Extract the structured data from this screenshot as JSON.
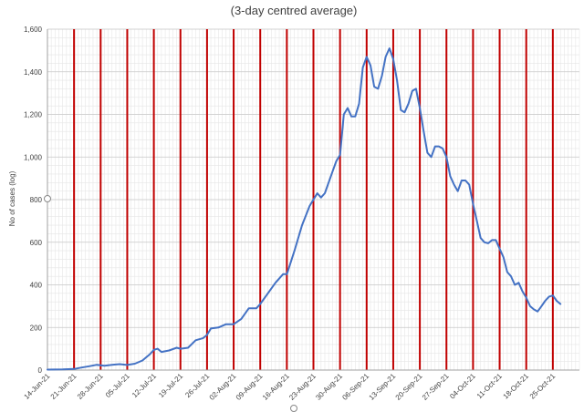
{
  "chart_data": {
    "type": "line",
    "title": "(3-day centred average)",
    "ylabel": "No of cases (log)",
    "xlabel": "",
    "ylim": [
      0,
      1600
    ],
    "yticks": [
      0,
      200,
      400,
      600,
      800,
      1000,
      1200,
      1400,
      1600
    ],
    "ytick_labels": [
      "0",
      "200",
      "400",
      "600",
      "800",
      "1,000",
      "1,200",
      "1,400",
      "1,600"
    ],
    "x_start": "2021-06-14",
    "x_end": "2021-11-01",
    "xtick_labels": [
      "14-Jun-21",
      "21-Jun-21",
      "28-Jun-21",
      "05-Jul-21",
      "12-Jul-21",
      "19-Jul-21",
      "26-Jul-21",
      "02-Aug-21",
      "09-Aug-21",
      "16-Aug-21",
      "23-Aug-21",
      "30-Aug-21",
      "06-Sep-21",
      "13-Sep-21",
      "20-Sep-21",
      "27-Sep-21",
      "04-Oct-21",
      "11-Oct-21",
      "18-Oct-21",
      "25-Oct-21"
    ],
    "grid": true,
    "weekly_marker_color": "#c00000",
    "line_color": "#4472c4",
    "series": [
      {
        "name": "",
        "points": [
          [
            "2021-06-14",
            2
          ],
          [
            "2021-06-18",
            3
          ],
          [
            "2021-06-21",
            5
          ],
          [
            "2021-06-23",
            12
          ],
          [
            "2021-06-25",
            18
          ],
          [
            "2021-06-27",
            25
          ],
          [
            "2021-06-29",
            20
          ],
          [
            "2021-07-01",
            25
          ],
          [
            "2021-07-03",
            28
          ],
          [
            "2021-07-05",
            24
          ],
          [
            "2021-07-07",
            30
          ],
          [
            "2021-07-09",
            45
          ],
          [
            "2021-07-11",
            75
          ],
          [
            "2021-07-12",
            95
          ],
          [
            "2021-07-13",
            100
          ],
          [
            "2021-07-14",
            85
          ],
          [
            "2021-07-16",
            92
          ],
          [
            "2021-07-18",
            105
          ],
          [
            "2021-07-19",
            100
          ],
          [
            "2021-07-21",
            105
          ],
          [
            "2021-07-23",
            140
          ],
          [
            "2021-07-25",
            150
          ],
          [
            "2021-07-26",
            165
          ],
          [
            "2021-07-27",
            195
          ],
          [
            "2021-07-29",
            200
          ],
          [
            "2021-07-31",
            215
          ],
          [
            "2021-08-02",
            215
          ],
          [
            "2021-08-04",
            240
          ],
          [
            "2021-08-06",
            290
          ],
          [
            "2021-08-08",
            290
          ],
          [
            "2021-08-09",
            310
          ],
          [
            "2021-08-11",
            360
          ],
          [
            "2021-08-13",
            410
          ],
          [
            "2021-08-15",
            450
          ],
          [
            "2021-08-16",
            450
          ],
          [
            "2021-08-18",
            560
          ],
          [
            "2021-08-20",
            680
          ],
          [
            "2021-08-22",
            770
          ],
          [
            "2021-08-24",
            830
          ],
          [
            "2021-08-25",
            810
          ],
          [
            "2021-08-26",
            830
          ],
          [
            "2021-08-28",
            930
          ],
          [
            "2021-08-29",
            980
          ],
          [
            "2021-08-30",
            1010
          ],
          [
            "2021-08-31",
            1200
          ],
          [
            "2021-09-01",
            1230
          ],
          [
            "2021-09-02",
            1190
          ],
          [
            "2021-09-03",
            1190
          ],
          [
            "2021-09-04",
            1250
          ],
          [
            "2021-09-05",
            1420
          ],
          [
            "2021-09-06",
            1470
          ],
          [
            "2021-09-07",
            1430
          ],
          [
            "2021-09-08",
            1330
          ],
          [
            "2021-09-09",
            1320
          ],
          [
            "2021-09-10",
            1380
          ],
          [
            "2021-09-11",
            1470
          ],
          [
            "2021-09-12",
            1510
          ],
          [
            "2021-09-13",
            1460
          ],
          [
            "2021-09-14",
            1360
          ],
          [
            "2021-09-15",
            1220
          ],
          [
            "2021-09-16",
            1210
          ],
          [
            "2021-09-17",
            1250
          ],
          [
            "2021-09-18",
            1310
          ],
          [
            "2021-09-19",
            1320
          ],
          [
            "2021-09-20",
            1230
          ],
          [
            "2021-09-21",
            1120
          ],
          [
            "2021-09-22",
            1020
          ],
          [
            "2021-09-23",
            1000
          ],
          [
            "2021-09-24",
            1050
          ],
          [
            "2021-09-25",
            1050
          ],
          [
            "2021-09-26",
            1040
          ],
          [
            "2021-09-27",
            1000
          ],
          [
            "2021-09-28",
            910
          ],
          [
            "2021-09-29",
            870
          ],
          [
            "2021-09-30",
            840
          ],
          [
            "2021-10-01",
            890
          ],
          [
            "2021-10-02",
            890
          ],
          [
            "2021-10-03",
            870
          ],
          [
            "2021-10-04",
            780
          ],
          [
            "2021-10-05",
            700
          ],
          [
            "2021-10-06",
            620
          ],
          [
            "2021-10-07",
            600
          ],
          [
            "2021-10-08",
            595
          ],
          [
            "2021-10-09",
            610
          ],
          [
            "2021-10-10",
            610
          ],
          [
            "2021-10-11",
            570
          ],
          [
            "2021-10-12",
            530
          ],
          [
            "2021-10-13",
            460
          ],
          [
            "2021-10-14",
            440
          ],
          [
            "2021-10-15",
            400
          ],
          [
            "2021-10-16",
            410
          ],
          [
            "2021-10-17",
            370
          ],
          [
            "2021-10-18",
            340
          ],
          [
            "2021-10-19",
            300
          ],
          [
            "2021-10-20",
            285
          ],
          [
            "2021-10-21",
            275
          ],
          [
            "2021-10-22",
            300
          ],
          [
            "2021-10-23",
            325
          ],
          [
            "2021-10-24",
            345
          ],
          [
            "2021-10-25",
            350
          ],
          [
            "2021-10-26",
            325
          ],
          [
            "2021-10-27",
            310
          ]
        ]
      }
    ]
  }
}
